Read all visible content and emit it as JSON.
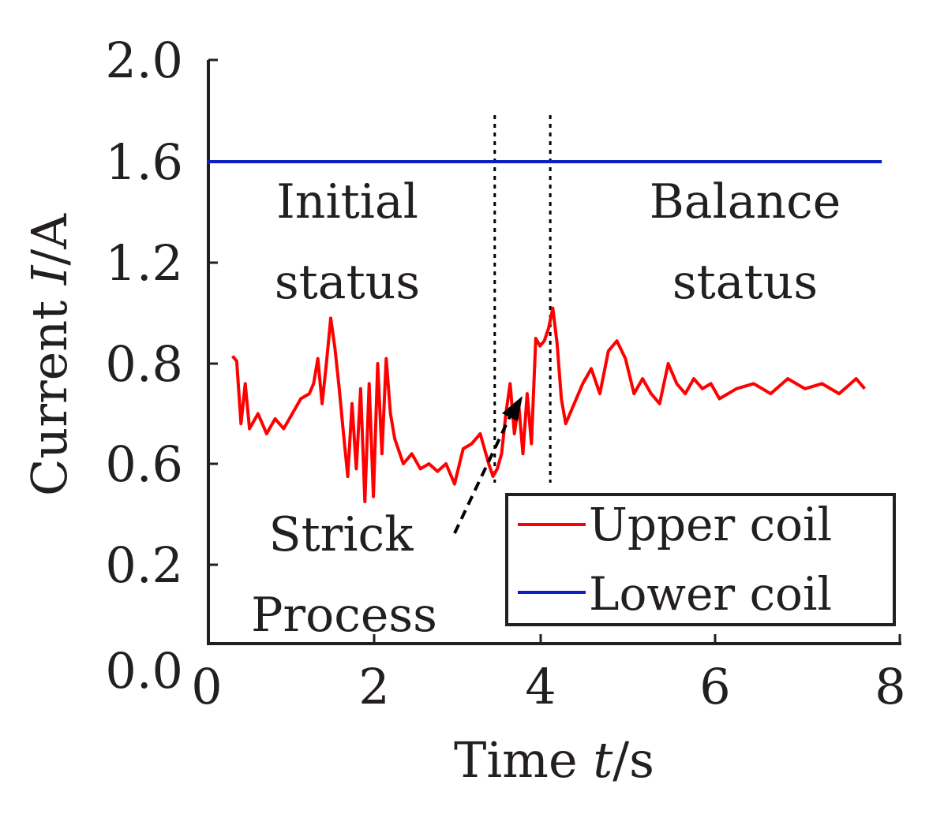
{
  "chart_data": {
    "type": "line",
    "xlabel": {
      "pre": "Time ",
      "var": "t",
      "post": "/s"
    },
    "ylabel": {
      "pre": "Current  ",
      "var": "I",
      "post": "/A"
    },
    "xlim": [
      0,
      8
    ],
    "ylim": [
      0,
      2
    ],
    "x_ticks": [
      "0",
      "2",
      "4",
      "6",
      "8"
    ],
    "y_ticks": [
      "0.0",
      "0.2",
      "0.6",
      "0.8",
      "1.2",
      "1.6",
      "2.0"
    ],
    "y_scale_note": "uneven tick spacing as printed",
    "grid": false,
    "legend_position": "bottom-right",
    "series": [
      {
        "name": "Upper coil",
        "color": "#ff0000",
        "x": [
          0.3,
          0.35,
          0.4,
          0.45,
          0.5,
          0.6,
          0.7,
          0.8,
          0.9,
          1.0,
          1.1,
          1.2,
          1.25,
          1.3,
          1.35,
          1.4,
          1.45,
          1.5,
          1.55,
          1.6,
          1.65,
          1.7,
          1.75,
          1.8,
          1.85,
          1.9,
          1.95,
          2.0,
          2.05,
          2.1,
          2.15,
          2.2,
          2.3,
          2.4,
          2.5,
          2.6,
          2.7,
          2.8,
          2.9,
          3.0,
          3.1,
          3.2,
          3.3,
          3.35,
          3.4,
          3.45,
          3.5,
          3.55,
          3.6,
          3.65,
          3.7,
          3.75,
          3.8,
          3.85,
          3.9,
          3.95,
          4.0,
          4.05,
          4.1,
          4.15,
          4.2,
          4.3,
          4.4,
          4.5,
          4.6,
          4.7,
          4.8,
          4.9,
          5.0,
          5.1,
          5.2,
          5.3,
          5.4,
          5.5,
          5.6,
          5.7,
          5.8,
          5.9,
          6.0,
          6.2,
          6.4,
          6.6,
          6.8,
          7.0,
          7.2,
          7.4,
          7.6,
          7.7
        ],
        "values": [
          0.83,
          0.81,
          0.68,
          0.76,
          0.67,
          0.7,
          0.66,
          0.69,
          0.67,
          0.7,
          0.73,
          0.74,
          0.76,
          0.82,
          0.72,
          0.8,
          0.98,
          0.86,
          0.75,
          0.66,
          0.55,
          0.72,
          0.58,
          0.75,
          0.45,
          0.76,
          0.47,
          0.8,
          0.62,
          0.82,
          0.7,
          0.65,
          0.6,
          0.62,
          0.58,
          0.6,
          0.57,
          0.6,
          0.52,
          0.63,
          0.64,
          0.66,
          0.6,
          0.55,
          0.58,
          0.62,
          0.7,
          0.76,
          0.66,
          0.72,
          0.62,
          0.74,
          0.64,
          0.9,
          0.87,
          0.89,
          0.94,
          1.02,
          0.88,
          0.73,
          0.68,
          0.72,
          0.76,
          0.79,
          0.74,
          0.85,
          0.89,
          0.82,
          0.74,
          0.77,
          0.74,
          0.72,
          0.8,
          0.76,
          0.74,
          0.77,
          0.75,
          0.76,
          0.73,
          0.75,
          0.76,
          0.74,
          0.77,
          0.75,
          0.76,
          0.74,
          0.77,
          0.75
        ]
      },
      {
        "name": "Lower coil",
        "color": "#0b1fc2",
        "x": [
          0,
          7.9
        ],
        "values": [
          1.6,
          1.6
        ]
      }
    ],
    "vlines": [
      3.37,
      4.02
    ],
    "annotations": {
      "initial": [
        "Initial",
        "status"
      ],
      "balance": [
        "Balance",
        "status"
      ],
      "strick": [
        "Strick",
        "Process"
      ]
    }
  }
}
